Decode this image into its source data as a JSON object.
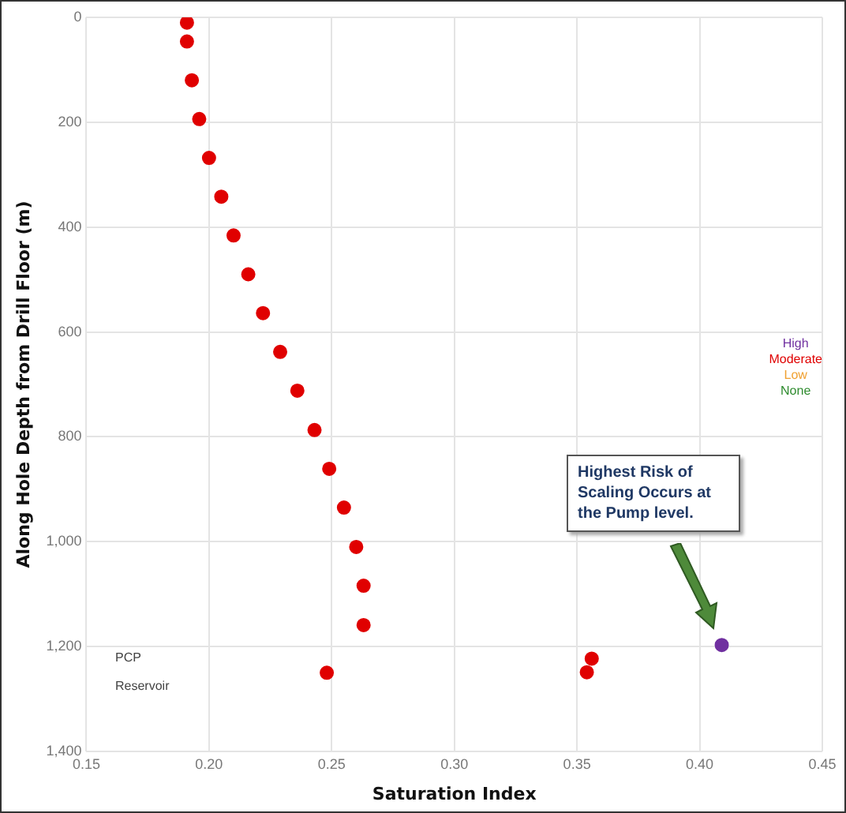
{
  "chart_data": {
    "type": "scatter",
    "xlabel": "Saturation Index",
    "ylabel": "Along Hole Depth from Drill Floor (m)",
    "xlim": [
      0.15,
      0.45
    ],
    "xticks": [
      0.15,
      {
        "value": 0.2,
        "label": "0.20"
      },
      0.25,
      {
        "value": 0.3,
        "label": "0.30"
      },
      0.35,
      {
        "value": 0.4,
        "label": "0.40"
      },
      0.45
    ],
    "ylim": [
      1400,
      0
    ],
    "yticks": [
      0,
      200,
      400,
      600,
      800,
      {
        "value": 1000,
        "label": "1,000"
      },
      {
        "value": 1200,
        "label": "1,200"
      },
      {
        "value": 1400,
        "label": "1,400"
      }
    ],
    "grid": true,
    "legend": "right",
    "marker": "circle",
    "series": [
      {
        "name": "High",
        "color": "#7030a0",
        "x": [
          0.409
        ],
        "values": [
          1197
        ]
      },
      {
        "name": "Moderate",
        "color": "#e00000",
        "x": [
          0.191,
          0.191,
          0.193,
          0.196,
          0.2,
          0.205,
          0.21,
          0.216,
          0.222,
          0.229,
          0.236,
          0.243,
          0.249,
          0.255,
          0.26,
          0.263,
          0.263,
          0.356,
          0.354,
          0.248
        ],
        "values": [
          10,
          46,
          120,
          194,
          268,
          342,
          416,
          490,
          564,
          638,
          712,
          787,
          861,
          935,
          1010,
          1084,
          1159,
          1223,
          1249,
          1250
        ]
      },
      {
        "name": "Low",
        "color": "#f0a030"
      },
      {
        "name": "None",
        "color": "#2e8b2e"
      }
    ],
    "annotations": [
      "PCP",
      "Reservoir",
      "Highest Risk of Scaling Occurs at the Pump level."
    ]
  }
}
